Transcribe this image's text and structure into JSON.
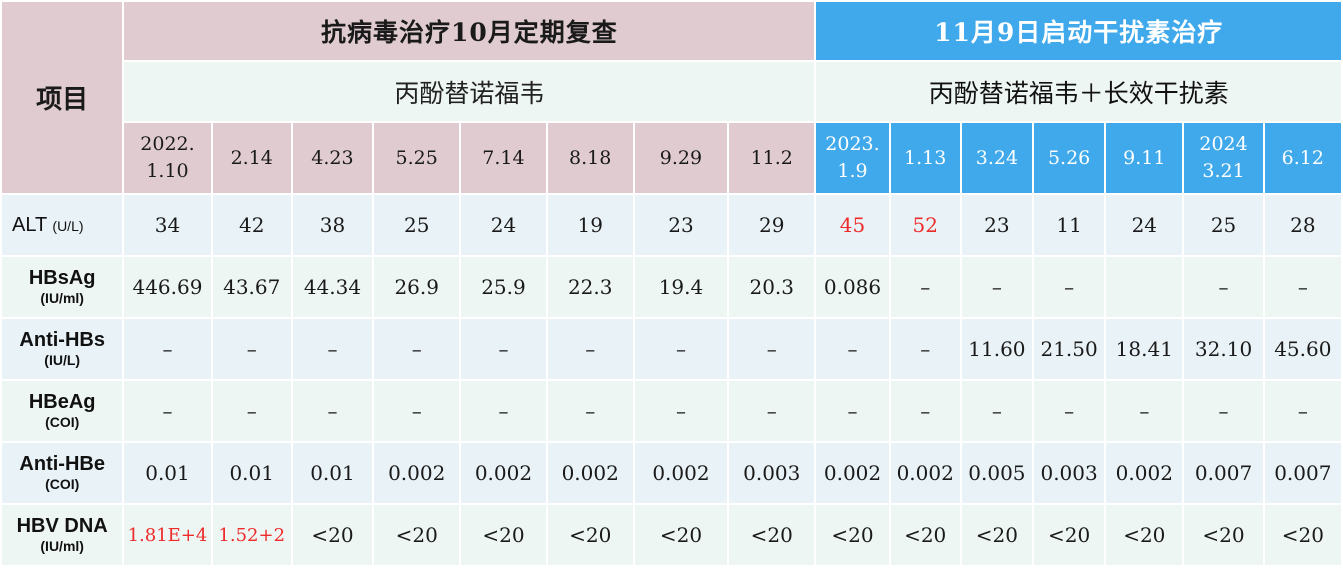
{
  "header": {
    "item_label": "项目",
    "phase1_title": "抗病毒治疗10月定期复查",
    "phase2_title": "11月9日启动干扰素治疗",
    "phase1_drug": "丙酚替诺福韦",
    "phase2_drug": "丙酚替诺福韦＋长效干扰素",
    "dates": [
      {
        "l1": "2022.",
        "l2": "1.10"
      },
      {
        "l1": "2.14",
        "l2": ""
      },
      {
        "l1": "4.23",
        "l2": ""
      },
      {
        "l1": "5.25",
        "l2": ""
      },
      {
        "l1": "7.14",
        "l2": ""
      },
      {
        "l1": "8.18",
        "l2": ""
      },
      {
        "l1": "9.29",
        "l2": ""
      },
      {
        "l1": "11.2",
        "l2": ""
      },
      {
        "l1": "2023.",
        "l2": "1.9"
      },
      {
        "l1": "1.13",
        "l2": ""
      },
      {
        "l1": "3.24",
        "l2": ""
      },
      {
        "l1": "5.26",
        "l2": ""
      },
      {
        "l1": "9.11",
        "l2": ""
      },
      {
        "l1": "2024",
        "l2": "3.21"
      },
      {
        "l1": "6.12",
        "l2": ""
      }
    ]
  },
  "rows": [
    {
      "name": "ALT",
      "unit": "(U/L)",
      "values": [
        "34",
        "42",
        "38",
        "25",
        "24",
        "19",
        "23",
        "29",
        "45",
        "52",
        "23",
        "11",
        "24",
        "25",
        "28"
      ]
    },
    {
      "name": "HBsAg",
      "unit": "(IU/ml)",
      "values": [
        "446.69",
        "43.67",
        "44.34",
        "26.9",
        "25.9",
        "22.3",
        "19.4",
        "20.3",
        "0.086",
        "–",
        "–",
        "–",
        "",
        "–",
        "–"
      ]
    },
    {
      "name": "Anti-HBs",
      "unit": "(IU/L)",
      "values": [
        "–",
        "–",
        "–",
        "–",
        "–",
        "–",
        "–",
        "–",
        "–",
        "–",
        "11.60",
        "21.50",
        "18.41",
        "32.10",
        "45.60"
      ]
    },
    {
      "name": "HBeAg",
      "unit": "(COI)",
      "values": [
        "–",
        "–",
        "–",
        "–",
        "–",
        "–",
        "–",
        "–",
        "–",
        "–",
        "–",
        "–",
        "–",
        "–",
        "–"
      ]
    },
    {
      "name": "Anti-HBe",
      "unit": "(COI)",
      "values": [
        "0.01",
        "0.01",
        "0.01",
        "0.002",
        "0.002",
        "0.002",
        "0.002",
        "0.003",
        "0.002",
        "0.002",
        "0.005",
        "0.003",
        "0.002",
        "0.007",
        "0.007"
      ]
    },
    {
      "name": "HBV DNA",
      "unit": "(IU/ml)",
      "values": [
        "1.81E+4",
        "1.52+2",
        "<20",
        "<20",
        "<20",
        "<20",
        "<20",
        "<20",
        "<20",
        "<20",
        "<20",
        "<20",
        "<20",
        "<20",
        "<20"
      ]
    }
  ],
  "highlight": {
    "red_color": "#ee2b2b",
    "pink_bg": "#e0ccd0",
    "blue_bg": "#3fa9ec"
  }
}
